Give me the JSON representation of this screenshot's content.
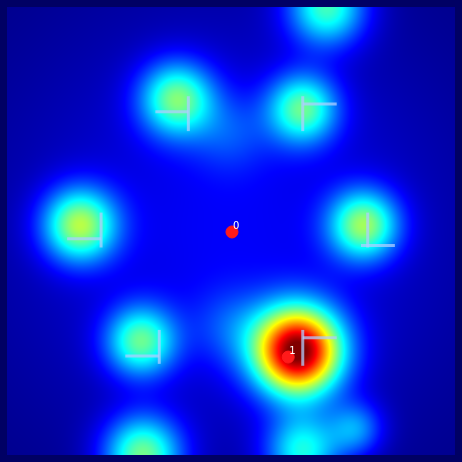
{
  "chart_data": {
    "type": "scatter",
    "x": [
      232,
      290
    ],
    "values": [
      232,
      361
    ],
    "point_labels": [
      "0",
      "1"
    ],
    "color": "#ff1a1a",
    "xlim": [
      0,
      462
    ],
    "ylim": [
      462,
      0
    ],
    "grid": false,
    "tick_labels": false,
    "hotspots": [
      [
        230,
        230,
        230,
        0.12
      ],
      [
        175,
        95,
        38,
        0.42
      ],
      [
        305,
        105,
        36,
        0.4
      ],
      [
        75,
        225,
        38,
        0.48
      ],
      [
        368,
        225,
        36,
        0.45
      ],
      [
        138,
        345,
        36,
        0.4
      ],
      [
        300,
        355,
        45,
        0.95
      ],
      [
        140,
        462,
        40,
        0.45
      ],
      [
        305,
        458,
        38,
        0.35
      ],
      [
        330,
        0,
        40,
        0.4
      ],
      [
        360,
        435,
        28,
        0.22
      ],
      [
        230,
        330,
        40,
        0.1
      ],
      [
        230,
        130,
        40,
        0.1
      ]
    ],
    "segments": [
      [
        153,
        108,
        187,
        108
      ],
      [
        187,
        92,
        187,
        128
      ],
      [
        305,
        92,
        305,
        128
      ],
      [
        305,
        100,
        340,
        100
      ],
      [
        62,
        239,
        97,
        239
      ],
      [
        97,
        212,
        97,
        248
      ],
      [
        372,
        212,
        372,
        248
      ],
      [
        365,
        246,
        400,
        246
      ],
      [
        122,
        360,
        157,
        360
      ],
      [
        157,
        333,
        157,
        368
      ],
      [
        305,
        333,
        305,
        370
      ],
      [
        305,
        341,
        340,
        341
      ]
    ]
  }
}
